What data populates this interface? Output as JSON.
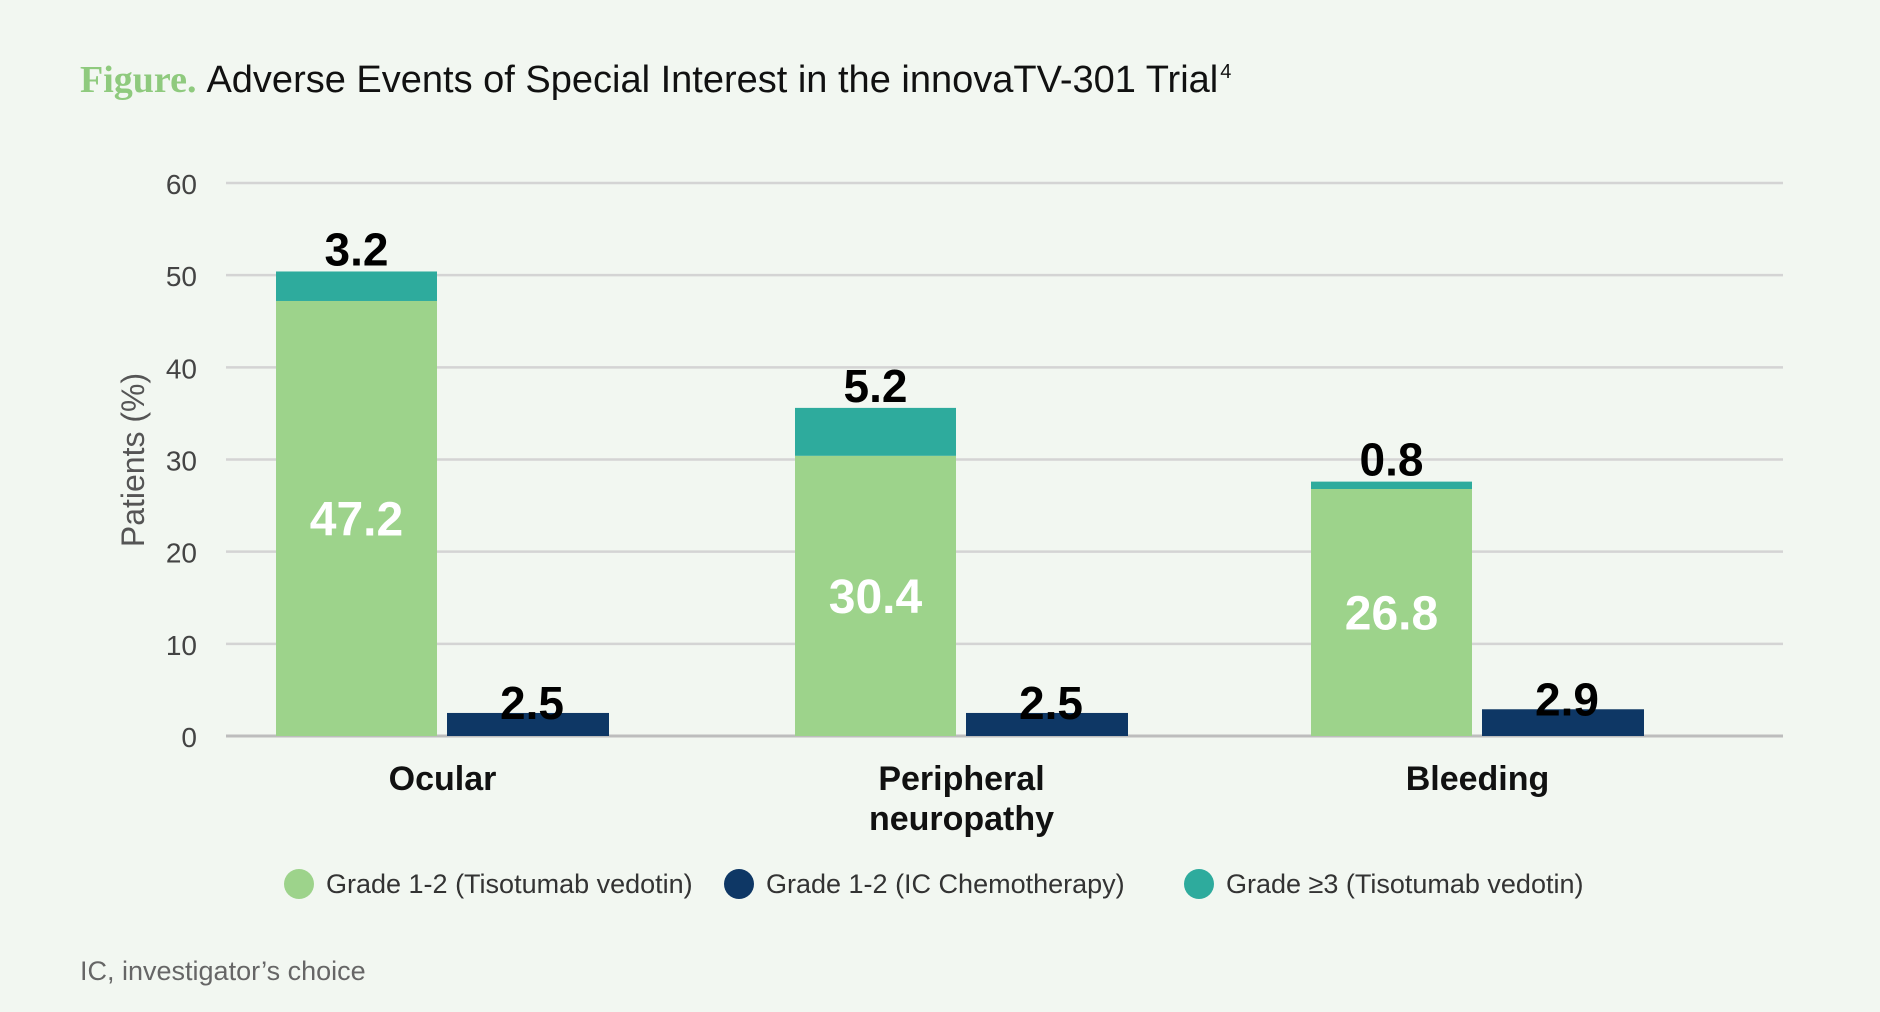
{
  "title": {
    "prefix": "Figure.",
    "text": "Adverse Events of Special Interest in the innovaTV-301 Trial",
    "superscript": "4"
  },
  "chart_data": {
    "type": "bar",
    "ylabel": "Patients (%)",
    "xlabel": "",
    "ylim": [
      0,
      60
    ],
    "yticks": [
      0,
      10,
      20,
      30,
      40,
      50,
      60
    ],
    "grid": true,
    "categories": [
      [
        "Ocular"
      ],
      [
        "Peripheral",
        "neuropathy"
      ],
      [
        "Bleeding"
      ]
    ],
    "series": [
      {
        "name": "Grade 1-2 (Tisotumab vedotin)",
        "color": "#9dd38b",
        "group": "tisotumab",
        "values": [
          47.2,
          30.4,
          26.8
        ]
      },
      {
        "name": "Grade ≥3 (Tisotumab vedotin)",
        "color": "#2eab9d",
        "group": "tisotumab",
        "stacked_on": "Grade 1-2 (Tisotumab vedotin)",
        "values": [
          3.2,
          5.2,
          0.8
        ]
      },
      {
        "name": "Grade 1-2 (IC Chemotherapy)",
        "color": "#0e3765",
        "group": "ic",
        "values": [
          2.5,
          2.5,
          2.9
        ]
      }
    ],
    "legend": [
      {
        "label": "Grade 1-2 (Tisotumab vedotin)",
        "color": "#9dd38b"
      },
      {
        "label": "Grade 1-2 (IC Chemotherapy)",
        "color": "#0e3765"
      },
      {
        "label": "Grade ≥3 (Tisotumab vedotin)",
        "color": "#2eab9d"
      }
    ],
    "legend_position": "bottom"
  },
  "footnote": "IC, investigator’s choice"
}
